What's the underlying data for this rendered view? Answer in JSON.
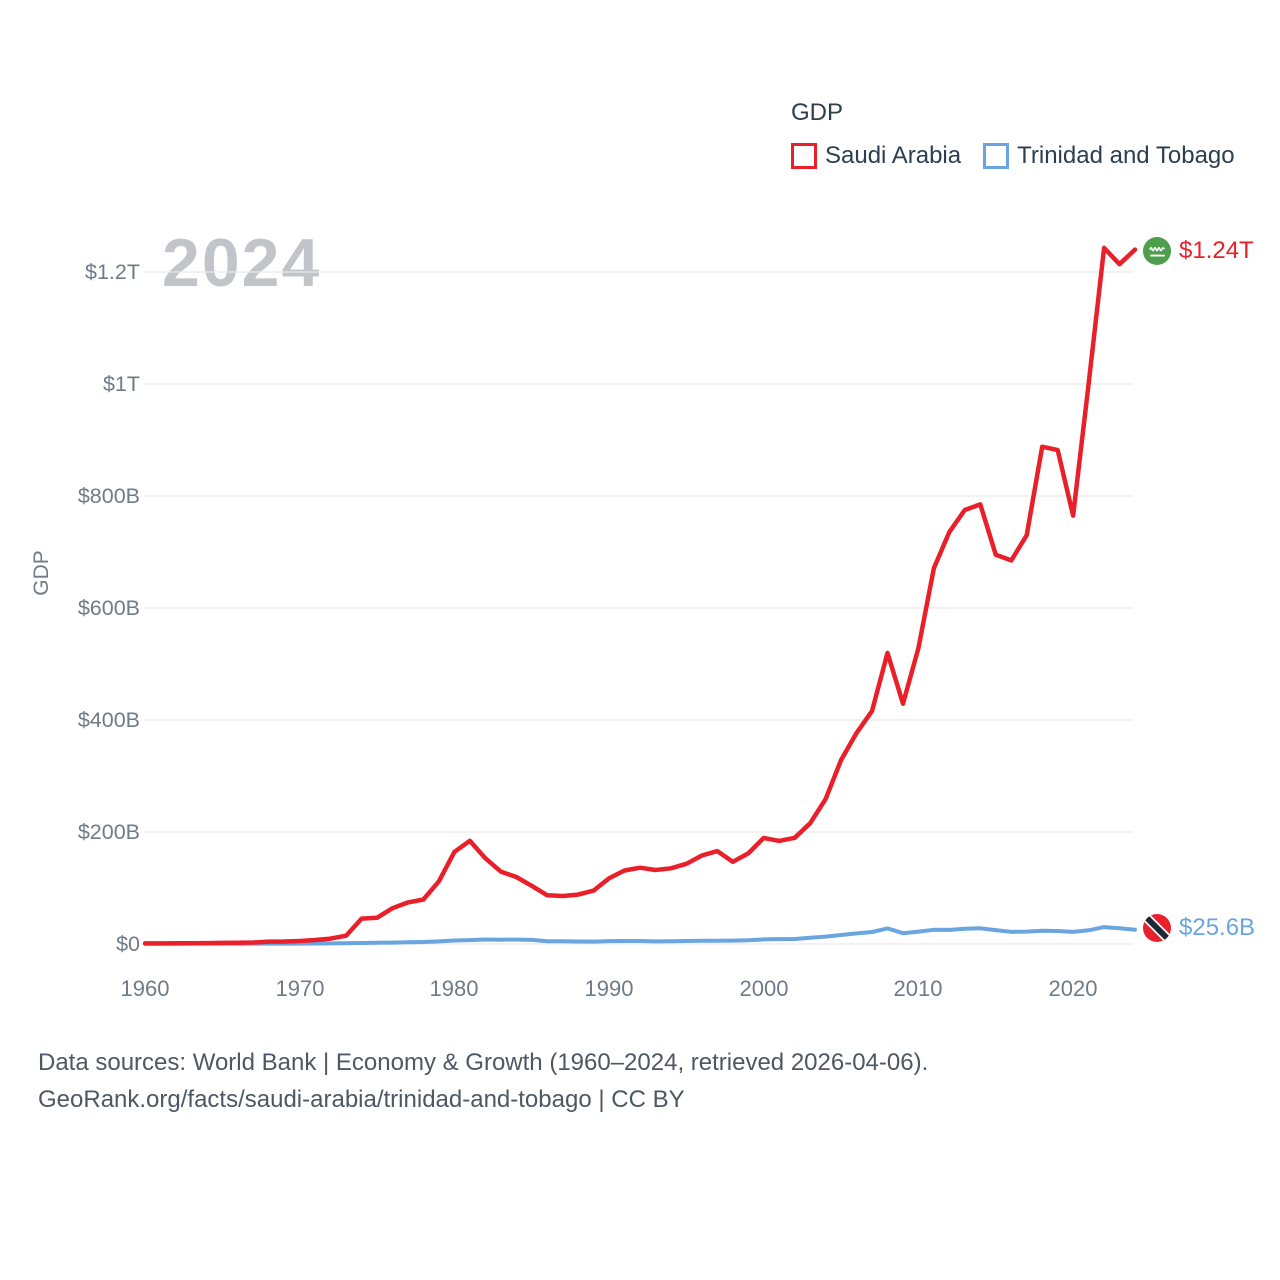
{
  "legend": {
    "title": "GDP",
    "items": [
      {
        "label": "Saudi Arabia",
        "color": "#e9202a"
      },
      {
        "label": "Trinidad and Tobago",
        "color": "#6aa5e0"
      }
    ]
  },
  "watermark_year": "2024",
  "y_axis_title": "GDP",
  "end_labels": [
    {
      "series": "Saudi Arabia",
      "value": "$1.24T",
      "color": "#e9202a",
      "flag": "saudi-arabia-flag-icon"
    },
    {
      "series": "Trinidad and Tobago",
      "value": "$25.6B",
      "color": "#6aa5e0",
      "flag": "trinidad-and-tobago-flag-icon"
    }
  ],
  "footer": {
    "line1": "Data sources: World Bank | Economy & Growth (1960–2024, retrieved 2026-04-06).",
    "line2": "GeoRank.org/facts/saudi-arabia/trinidad-and-tobago | CC BY"
  },
  "colors": {
    "saudi_red": "#e9202a",
    "tt_blue": "#6aa5e0",
    "grid": "#e7e9eb",
    "tick_text": "#6f7b86",
    "legend_text": "#2c3e50",
    "watermark": "#c1c5c9",
    "footer_text": "#4d5863"
  },
  "chart_data": {
    "type": "line",
    "title": "GDP",
    "xlabel": "",
    "ylabel": "GDP",
    "units": "USD billions",
    "grid": "horizontal",
    "legend_position": "top-right",
    "ylim": [
      0,
      1260
    ],
    "xlim": [
      1960,
      2024
    ],
    "x": [
      1960,
      1961,
      1962,
      1963,
      1964,
      1965,
      1966,
      1967,
      1968,
      1969,
      1970,
      1971,
      1972,
      1973,
      1974,
      1975,
      1976,
      1977,
      1978,
      1979,
      1980,
      1981,
      1982,
      1983,
      1984,
      1985,
      1986,
      1987,
      1988,
      1989,
      1990,
      1991,
      1992,
      1993,
      1994,
      1995,
      1996,
      1997,
      1998,
      1999,
      2000,
      2001,
      2002,
      2003,
      2004,
      2005,
      2006,
      2007,
      2008,
      2009,
      2010,
      2011,
      2012,
      2013,
      2014,
      2015,
      2016,
      2017,
      2018,
      2019,
      2020,
      2021,
      2022,
      2023,
      2024
    ],
    "series": [
      {
        "name": "Saudi Arabia",
        "color": "#e9202a",
        "end_value_label": "$1.24T",
        "values": [
          1.0,
          1.1,
          1.2,
          1.4,
          1.6,
          1.9,
          2.3,
          2.6,
          4.2,
          4.4,
          5.4,
          7.2,
          9.7,
          14.9,
          45.4,
          46.8,
          64.0,
          74.2,
          79.4,
          111.9,
          164.5,
          184.3,
          153.2,
          129.2,
          119.6,
          103.9,
          86.9,
          85.7,
          88.3,
          95.3,
          117.5,
          131.3,
          136.3,
          132.2,
          135.2,
          143.3,
          158.1,
          165.9,
          146.8,
          161.7,
          189.5,
          184.1,
          189.6,
          215.8,
          258.7,
          328.5,
          376.9,
          415.9,
          519.8,
          429.1,
          528.2,
          671.2,
          735.9,
          775,
          785,
          695,
          685,
          730,
          888,
          882,
          765,
          1000,
          1243,
          1214,
          1240
        ]
      },
      {
        "name": "Trinidad and Tobago",
        "color": "#6aa5e0",
        "end_value_label": "$25.6B",
        "values": [
          0.5,
          0.6,
          0.6,
          0.7,
          0.7,
          0.7,
          0.7,
          0.8,
          0.8,
          0.8,
          0.8,
          0.9,
          1.1,
          1.3,
          1.8,
          2.4,
          2.5,
          3.1,
          3.6,
          4.6,
          6.2,
          6.9,
          8.1,
          7.7,
          7.8,
          7.4,
          4.8,
          4.8,
          4.5,
          4.3,
          5.1,
          5.3,
          5.4,
          4.6,
          5.0,
          5.3,
          5.8,
          5.7,
          6.0,
          6.8,
          8.2,
          8.8,
          9.0,
          11.3,
          13.3,
          16.1,
          19.0,
          21.5,
          27.9,
          19.2,
          22.2,
          25.4,
          25.2,
          27.3,
          28.1,
          24.9,
          21.6,
          22.1,
          23.8,
          23.2,
          21.6,
          24.5,
          30.1,
          28.1,
          25.6
        ]
      }
    ],
    "yticks": [
      {
        "value": 0,
        "label": "$0"
      },
      {
        "value": 200,
        "label": "$200B"
      },
      {
        "value": 400,
        "label": "$400B"
      },
      {
        "value": 600,
        "label": "$600B"
      },
      {
        "value": 800,
        "label": "$800B"
      },
      {
        "value": 1000,
        "label": "$1T"
      },
      {
        "value": 1200,
        "label": "$1.2T"
      }
    ],
    "xticks": [
      {
        "value": 1960,
        "label": "1960"
      },
      {
        "value": 1970,
        "label": "1970"
      },
      {
        "value": 1980,
        "label": "1980"
      },
      {
        "value": 1990,
        "label": "1990"
      },
      {
        "value": 2000,
        "label": "2000"
      },
      {
        "value": 2010,
        "label": "2010"
      },
      {
        "value": 2020,
        "label": "2020"
      }
    ]
  }
}
